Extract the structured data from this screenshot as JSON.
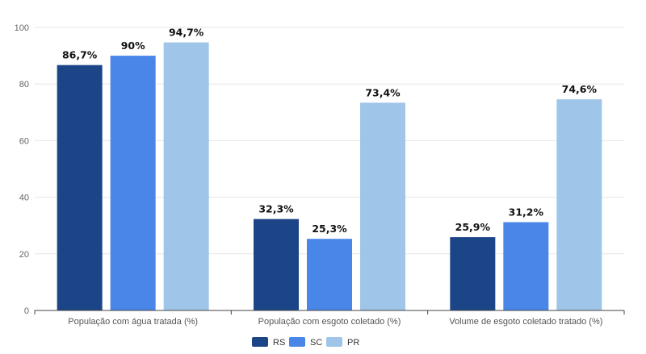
{
  "chart_data": {
    "type": "bar",
    "categories": [
      "População com água tratada (%)",
      "População com esgoto coletado (%)",
      "Volume de esgoto coletado tratado (%)"
    ],
    "series": [
      {
        "name": "RS",
        "color": "#1c4587",
        "values": [
          86.7,
          32.3,
          25.9
        ],
        "labels": [
          "86,7%",
          "32,3%",
          "25,9%"
        ]
      },
      {
        "name": "SC",
        "color": "#4a86e8",
        "values": [
          90,
          25.3,
          31.2
        ],
        "labels": [
          "90%",
          "25,3%",
          "31,2%"
        ]
      },
      {
        "name": "PR",
        "color": "#9fc5e8",
        "values": [
          94.7,
          73.4,
          74.6
        ],
        "labels": [
          "94,7%",
          "73,4%",
          "74,6%"
        ]
      }
    ],
    "ylim": [
      0,
      100
    ],
    "yticks": [
      0,
      20,
      40,
      60,
      80,
      100
    ],
    "grid": true,
    "legend_position": "bottom"
  }
}
